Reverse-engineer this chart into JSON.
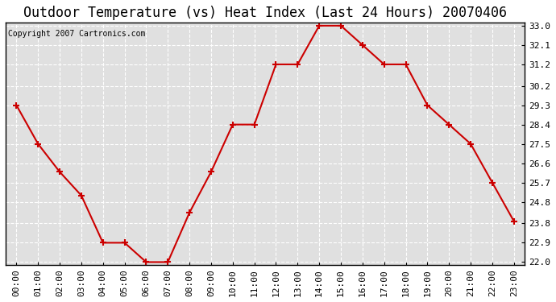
{
  "title": "Outdoor Temperature (vs) Heat Index (Last 24 Hours) 20070406",
  "copyright_text": "Copyright 2007 Cartronics.com",
  "x_labels": [
    "00:00",
    "01:00",
    "02:00",
    "03:00",
    "04:00",
    "05:00",
    "06:00",
    "07:00",
    "08:00",
    "09:00",
    "10:00",
    "11:00",
    "12:00",
    "13:00",
    "14:00",
    "15:00",
    "16:00",
    "17:00",
    "18:00",
    "19:00",
    "20:00",
    "21:00",
    "22:00",
    "23:00"
  ],
  "y_values": [
    29.3,
    27.5,
    26.2,
    25.1,
    22.9,
    22.9,
    22.0,
    22.0,
    24.3,
    26.2,
    28.4,
    28.4,
    31.2,
    31.2,
    33.0,
    33.0,
    32.1,
    31.2,
    31.2,
    29.3,
    28.4,
    27.5,
    25.7,
    23.9
  ],
  "ylim_min": 22.0,
  "ylim_max": 33.0,
  "yticks": [
    22.0,
    22.9,
    23.8,
    24.8,
    25.7,
    26.6,
    27.5,
    28.4,
    29.3,
    30.2,
    31.2,
    32.1,
    33.0
  ],
  "line_color": "#cc0000",
  "marker_color": "#cc0000",
  "bg_color": "#e0e0e0",
  "grid_color": "#ffffff",
  "title_fontsize": 12,
  "axis_fontsize": 8
}
